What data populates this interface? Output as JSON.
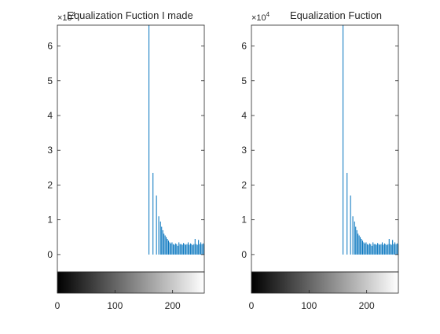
{
  "chart_data": [
    {
      "type": "bar",
      "title": "Equalization Fuction I made",
      "exponent_label": "×10",
      "exponent_value": "4",
      "xlabel": "",
      "ylabel": "",
      "xlim": [
        0,
        255
      ],
      "ylim": [
        -0.5,
        6.6
      ],
      "xticks": [
        0,
        100,
        200
      ],
      "yticks": [
        0,
        1,
        2,
        3,
        4,
        5,
        6
      ],
      "colorbar": "grayscale",
      "series": [
        {
          "color": "#0072bd",
          "x": [
            159,
            166,
            172,
            176,
            179,
            181,
            183,
            185,
            187,
            189,
            191,
            193,
            195,
            197,
            199,
            201,
            203,
            205,
            207,
            209,
            211,
            213,
            215,
            217,
            219,
            221,
            223,
            225,
            227,
            229,
            231,
            233,
            235,
            237,
            239,
            241,
            243,
            245,
            247,
            249,
            251,
            253,
            255
          ],
          "values": [
            6.6,
            2.35,
            1.7,
            1.1,
            0.95,
            0.8,
            0.7,
            0.6,
            0.55,
            0.5,
            0.45,
            0.4,
            0.35,
            0.32,
            0.35,
            0.3,
            0.28,
            0.32,
            0.3,
            0.25,
            0.35,
            0.3,
            0.3,
            0.28,
            0.33,
            0.3,
            0.28,
            0.3,
            0.35,
            0.28,
            0.32,
            0.3,
            0.27,
            0.3,
            0.45,
            0.3,
            0.28,
            0.42,
            0.3,
            0.35,
            0.3,
            0.32,
            0.3
          ]
        }
      ]
    },
    {
      "type": "bar",
      "title": "Equalization Fuction",
      "exponent_label": "×10",
      "exponent_value": "4",
      "xlabel": "",
      "ylabel": "",
      "xlim": [
        0,
        255
      ],
      "ylim": [
        -0.5,
        6.6
      ],
      "xticks": [
        0,
        100,
        200
      ],
      "yticks": [
        0,
        1,
        2,
        3,
        4,
        5,
        6
      ],
      "colorbar": "grayscale",
      "series": [
        {
          "color": "#0072bd",
          "x": [
            159,
            166,
            172,
            176,
            179,
            181,
            183,
            185,
            187,
            189,
            191,
            193,
            195,
            197,
            199,
            201,
            203,
            205,
            207,
            209,
            211,
            213,
            215,
            217,
            219,
            221,
            223,
            225,
            227,
            229,
            231,
            233,
            235,
            237,
            239,
            241,
            243,
            245,
            247,
            249,
            251,
            253,
            255
          ],
          "values": [
            6.6,
            2.35,
            1.7,
            1.1,
            0.95,
            0.8,
            0.7,
            0.6,
            0.55,
            0.5,
            0.45,
            0.4,
            0.35,
            0.32,
            0.35,
            0.3,
            0.28,
            0.32,
            0.3,
            0.25,
            0.35,
            0.3,
            0.3,
            0.28,
            0.33,
            0.3,
            0.28,
            0.3,
            0.35,
            0.28,
            0.32,
            0.3,
            0.27,
            0.3,
            0.45,
            0.3,
            0.28,
            0.42,
            0.3,
            0.35,
            0.3,
            0.32,
            0.3
          ]
        }
      ]
    }
  ]
}
